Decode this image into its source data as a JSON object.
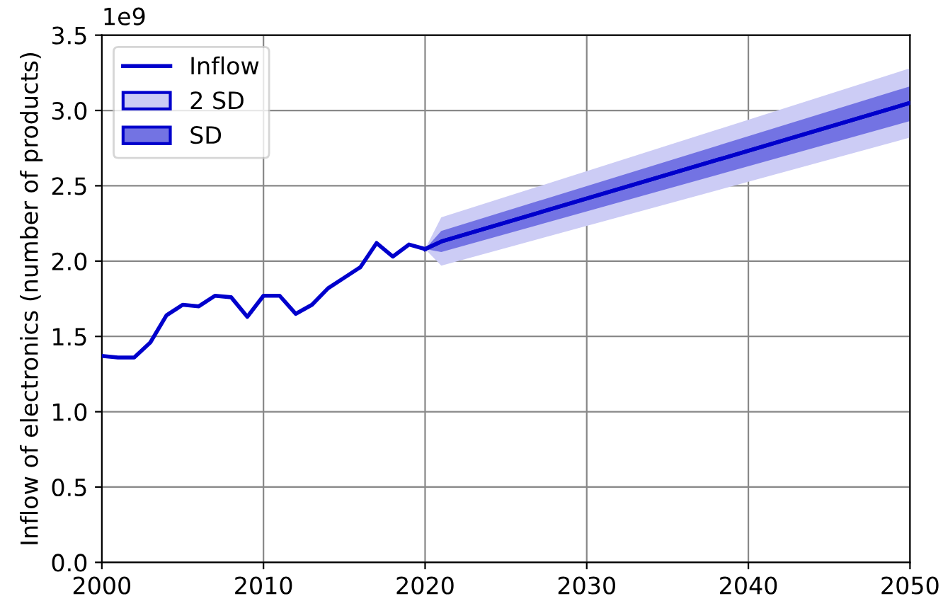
{
  "chart_data": {
    "type": "line",
    "ylabel": "Inflow of electronics (number of products)",
    "annotations": [
      "1e9"
    ],
    "xlim": [
      2000,
      2050
    ],
    "xticks": [
      2000,
      2010,
      2020,
      2030,
      2040,
      2050
    ],
    "ylim": [
      0,
      3.5
    ],
    "yticks": [
      {
        "value": 0,
        "label": "0.0"
      },
      {
        "value": 0.5,
        "label": "0.5"
      },
      {
        "value": 1,
        "label": "1.0"
      },
      {
        "value": 1.5,
        "label": "1.5"
      },
      {
        "value": 2,
        "label": "2.0"
      },
      {
        "value": 2.5,
        "label": "2.5"
      },
      {
        "value": 3,
        "label": "3.0"
      },
      {
        "value": 3.5,
        "label": "3.5"
      }
    ],
    "grid": true,
    "legend": "top left",
    "series": [
      {
        "name": "Inflow",
        "color": "#0000cc",
        "x": [
          2000,
          2001,
          2002,
          2003,
          2004,
          2005,
          2006,
          2007,
          2008,
          2009,
          2010,
          2011,
          2012,
          2013,
          2014,
          2015,
          2016,
          2017,
          2018,
          2019,
          2020
        ],
        "values": [
          1.37,
          1.36,
          1.36,
          1.46,
          1.64,
          1.71,
          1.7,
          1.77,
          1.76,
          1.63,
          1.77,
          1.77,
          1.65,
          1.71,
          1.82,
          1.89,
          1.96,
          2.12,
          2.03,
          2.11,
          2.08
        ]
      },
      {
        "name": "2 SD",
        "color": "#0000cc",
        "x": [
          2020,
          2021,
          2050
        ],
        "values": [
          2.08,
          2.13,
          3.05
        ],
        "lower": [
          2.08,
          1.97,
          2.82
        ],
        "upper": [
          2.08,
          2.29,
          3.28
        ]
      },
      {
        "name": "SD",
        "color": "#0000cc",
        "x": [
          2020,
          2021,
          2050
        ],
        "values": [
          2.08,
          2.13,
          3.05
        ],
        "lower": [
          2.08,
          2.06,
          2.93
        ],
        "upper": [
          2.08,
          2.2,
          3.16
        ]
      }
    ]
  }
}
